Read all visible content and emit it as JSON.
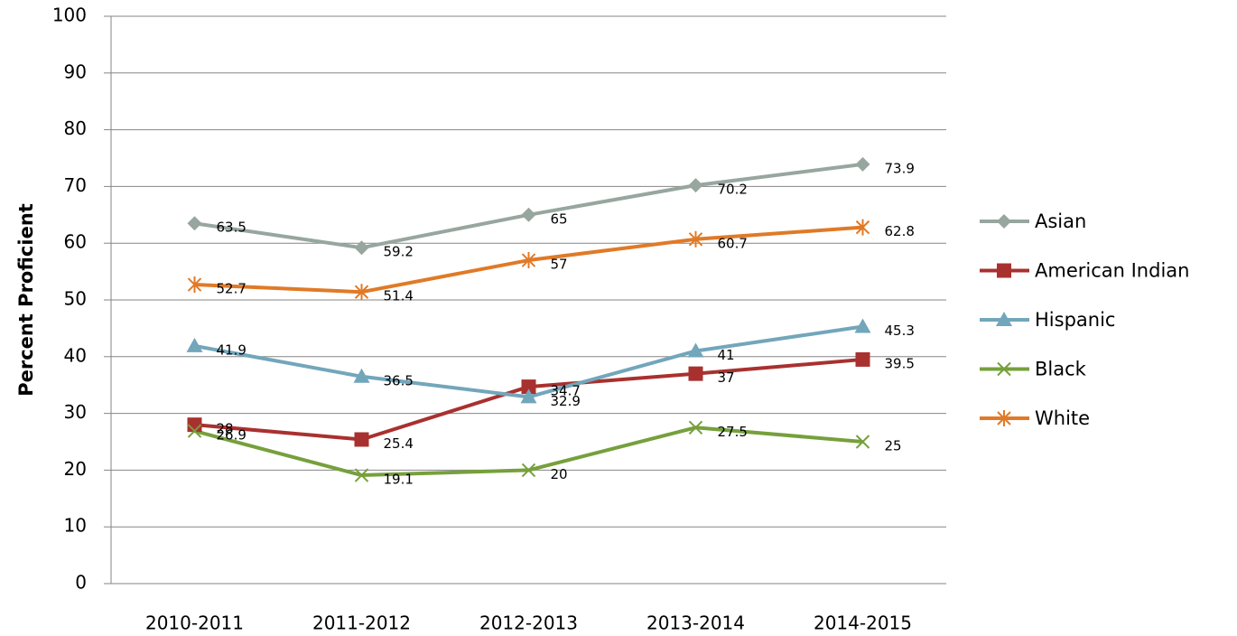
{
  "chart_data": {
    "type": "line",
    "ylabel": "Percent Proficient",
    "categories": [
      "2010-2011",
      "2011-2012",
      "2012-2013",
      "2013-2014",
      "2014-2015"
    ],
    "series": [
      {
        "name": "Asian",
        "color": "#97a69e",
        "marker": "diamond",
        "values": [
          63.5,
          59.2,
          65,
          70.2,
          73.9
        ]
      },
      {
        "name": "American Indian",
        "color": "#a8312f",
        "marker": "square",
        "values": [
          28,
          25.4,
          34.7,
          37,
          39.5
        ]
      },
      {
        "name": "Hispanic",
        "color": "#72a6bb",
        "marker": "triangle",
        "values": [
          41.9,
          36.5,
          32.9,
          41,
          45.3
        ]
      },
      {
        "name": "Black",
        "color": "#76a03b",
        "marker": "x",
        "values": [
          26.9,
          19.1,
          20,
          27.5,
          25
        ]
      },
      {
        "name": "White",
        "color": "#e07a27",
        "marker": "star",
        "values": [
          52.7,
          51.4,
          57,
          60.7,
          62.8
        ]
      }
    ],
    "ylim": [
      0,
      100
    ],
    "yticks": [
      0,
      10,
      20,
      30,
      40,
      50,
      60,
      70,
      80,
      90,
      100
    ],
    "grid": true,
    "legend": "right"
  }
}
